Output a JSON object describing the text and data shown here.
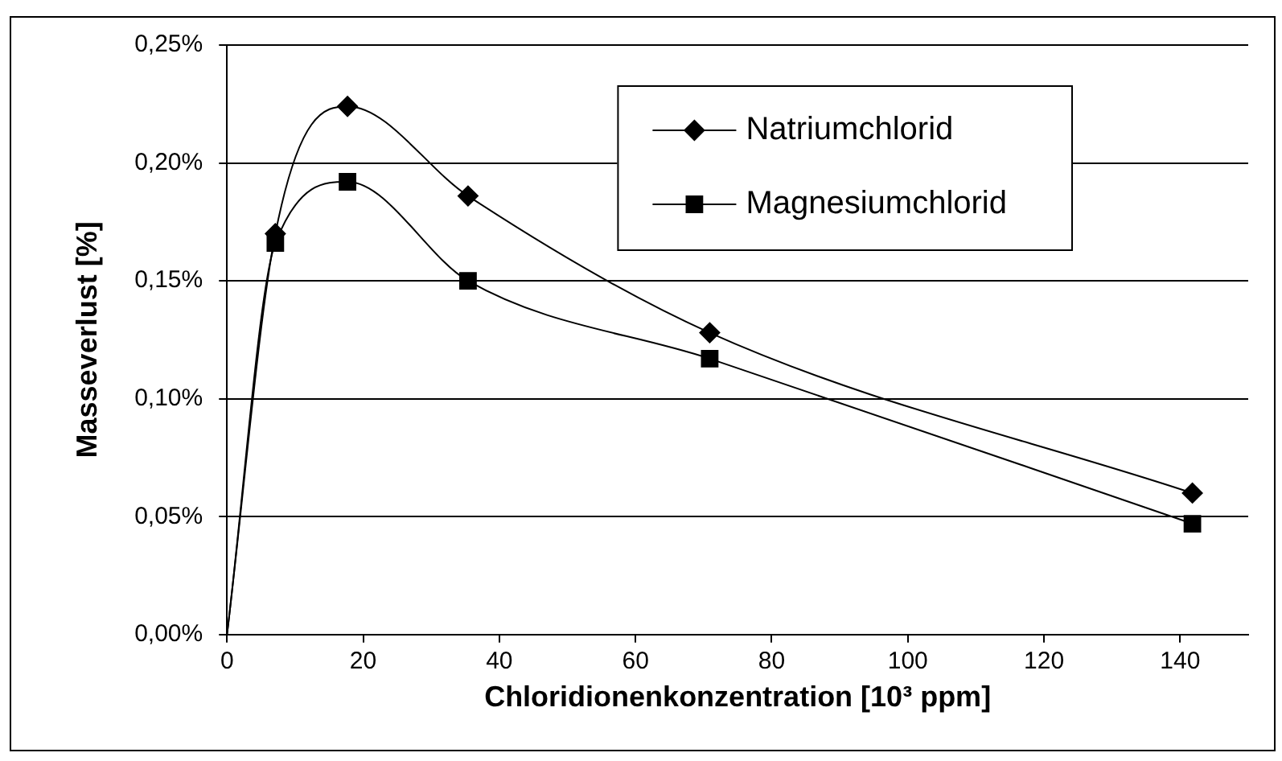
{
  "chart_data": {
    "type": "line",
    "xlabel": "Chloridionenkonzentration [10³ ppm]",
    "ylabel": "Masseverlust [%]",
    "xlim": [
      0,
      150
    ],
    "xticks": [
      0,
      20,
      40,
      60,
      80,
      100,
      120,
      140
    ],
    "ylim": [
      0,
      0.25
    ],
    "yticks": [
      {
        "value": 0,
        "label": "0,00%"
      },
      {
        "value": 0.05,
        "label": "0,05%"
      },
      {
        "value": 0.1,
        "label": "0,10%"
      },
      {
        "value": 0.15,
        "label": "0,15%"
      },
      {
        "value": 0.2,
        "label": "0,20%"
      },
      {
        "value": 0.25,
        "label": "0,25%"
      }
    ],
    "x": [
      0,
      7.1,
      17.7,
      35.4,
      70.9,
      141.8
    ],
    "series": [
      {
        "name": "Natriumchlorid",
        "color": "#000000",
        "marker": "diamond",
        "values": [
          0,
          0.17,
          0.224,
          0.186,
          0.128,
          0.06
        ]
      },
      {
        "name": "Magnesiumchlorid",
        "color": "#000000",
        "marker": "square",
        "values": [
          0,
          0.166,
          0.192,
          0.15,
          0.117,
          0.047
        ]
      }
    ],
    "grid": "y",
    "legend": "top right",
    "line_style": "solid"
  }
}
